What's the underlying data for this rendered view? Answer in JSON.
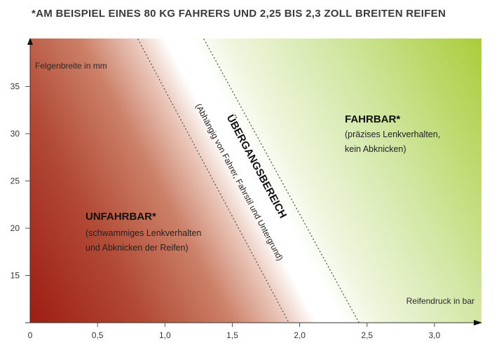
{
  "chart_data": {
    "type": "area",
    "title": "*AM BEISPIEL EINES 80 KG FAHRERS UND 2,25 BIS 2,3 ZOLL BREITEN REIFEN",
    "xlabel": "Reifendruck in bar",
    "ylabel": "Felgenbreite in mm",
    "xlim": [
      0,
      3.35
    ],
    "ylim": [
      10,
      40
    ],
    "xticks": [
      0,
      0.5,
      1.0,
      1.5,
      2.0,
      2.5,
      3.0
    ],
    "xtick_labels": [
      "0",
      "0,5",
      "1,0",
      "1,5",
      "2,0",
      "2,5",
      "3,0"
    ],
    "yticks": [
      15,
      20,
      25,
      30,
      35
    ],
    "ytick_labels": [
      "15",
      "20",
      "25",
      "30",
      "35"
    ],
    "grid": false,
    "boundaries": [
      {
        "points": [
          [
            0.8,
            40
          ],
          [
            1.92,
            10
          ]
        ],
        "style": "dotted"
      },
      {
        "points": [
          [
            1.29,
            40
          ],
          [
            2.44,
            10
          ]
        ],
        "style": "dotted"
      }
    ],
    "regions": [
      {
        "name": "UNFAHRBAR*",
        "lines": [
          "(schwammiges Lenkverhalten",
          "und Abknicken der Reifen)"
        ],
        "color": "#9c1a12"
      },
      {
        "name": "ÜBERGANGSBEREICH",
        "lines": [
          "(Abhängig von Fahrer, Fahrstil und Untergrund)"
        ],
        "color": "#ffffff"
      },
      {
        "name": "FAHRBAR*",
        "lines": [
          "(präzises Lenkverhalten,",
          "kein Abknicken)"
        ],
        "color": "#a8cd3a"
      }
    ]
  }
}
